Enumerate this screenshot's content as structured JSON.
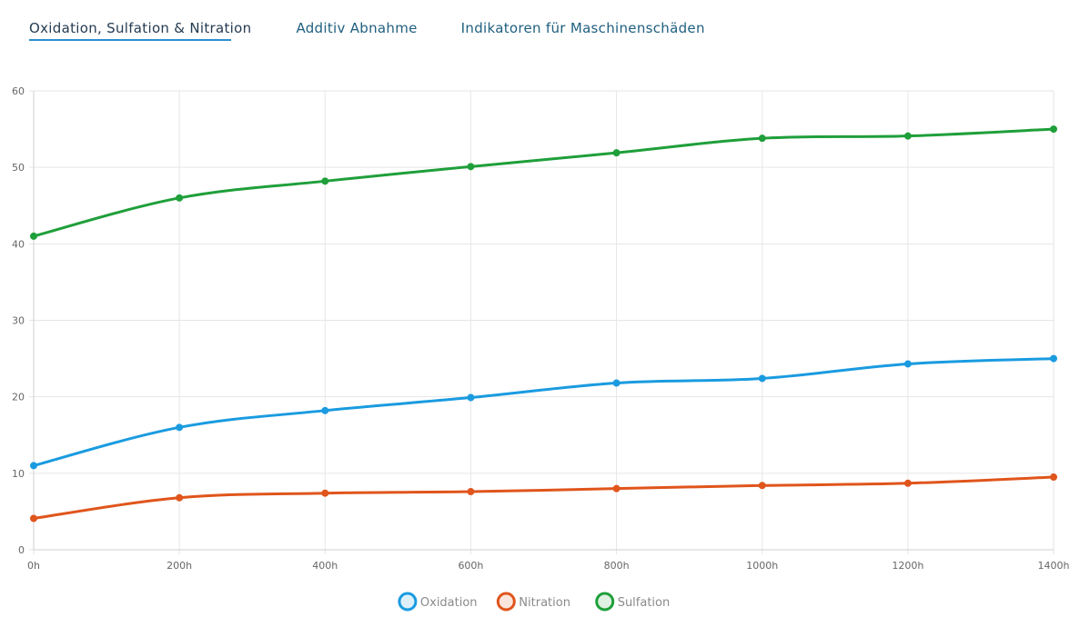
{
  "tabs": [
    {
      "label": "Oxidation, Sulfation & Nitration",
      "active": true
    },
    {
      "label": "Additiv Abnahme",
      "active": false
    },
    {
      "label": "Indikatoren für Maschinenschäden",
      "active": false
    }
  ],
  "chart_data": {
    "type": "line",
    "title": "",
    "xlabel": "",
    "ylabel": "",
    "categories": [
      "0h",
      "200h",
      "400h",
      "600h",
      "800h",
      "1000h",
      "1200h",
      "1400h"
    ],
    "ylim": [
      0,
      60
    ],
    "yticks": [
      0,
      10,
      20,
      30,
      40,
      50,
      60
    ],
    "grid": true,
    "legend_position": "bottom-center",
    "series": [
      {
        "name": "Oxidation",
        "color": "#1a9be0",
        "values": [
          11,
          16,
          18.2,
          19.9,
          21.8,
          22.4,
          24.3,
          25
        ]
      },
      {
        "name": "Nitration",
        "color": "#e0551c",
        "values": [
          4.1,
          6.8,
          7.4,
          7.6,
          8,
          8.4,
          8.7,
          9.5
        ]
      },
      {
        "name": "Sulfation",
        "color": "#1f9f3a",
        "values": [
          41,
          46,
          48.2,
          50.1,
          51.9,
          53.8,
          54.1,
          55
        ]
      }
    ]
  }
}
